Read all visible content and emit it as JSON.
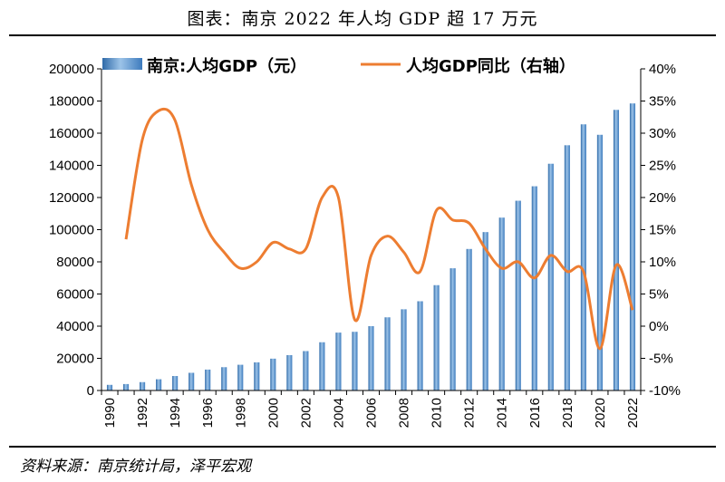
{
  "title": "图表：南京 2022 年人均 GDP 超 17 万元",
  "source": "资料来源：南京统计局，泽平宏观",
  "chart_data": {
    "type": "bar",
    "title": "图表：南京 2022 年人均 GDP 超 17 万元",
    "categories": [
      "1990",
      "1991",
      "1992",
      "1993",
      "1994",
      "1995",
      "1996",
      "1997",
      "1998",
      "1999",
      "2000",
      "2001",
      "2002",
      "2003",
      "2004",
      "2005",
      "2006",
      "2007",
      "2008",
      "2009",
      "2010",
      "2011",
      "2012",
      "2013",
      "2014",
      "2015",
      "2016",
      "2017",
      "2018",
      "2019",
      "2020",
      "2021",
      "2022"
    ],
    "x_tick_labels": [
      "1990",
      "1992",
      "1994",
      "1996",
      "1998",
      "2000",
      "2002",
      "2004",
      "2006",
      "2008",
      "2010",
      "2012",
      "2014",
      "2016",
      "2018",
      "2020",
      "2022"
    ],
    "series": [
      {
        "name": "南京:人均GDP（元）",
        "type": "bar",
        "axis": "left",
        "color": "#5b8fc7",
        "values": [
          3500,
          4000,
          5200,
          7000,
          9000,
          11000,
          13000,
          14500,
          16000,
          17500,
          19800,
          22000,
          24500,
          30000,
          36000,
          36500,
          40000,
          45500,
          50500,
          55500,
          65500,
          76000,
          88000,
          98500,
          107500,
          118000,
          127000,
          141000,
          152500,
          165500,
          159000,
          174500,
          178500
        ]
      },
      {
        "name": "人均GDP同比（右轴）",
        "type": "line",
        "axis": "right",
        "color": "#ed7d31",
        "values": [
          null,
          13.5,
          29,
          33.5,
          32,
          22,
          15,
          11.5,
          9,
          10,
          13,
          12,
          12,
          20,
          20,
          1,
          11,
          14,
          11.5,
          8.5,
          18,
          16.5,
          16,
          12,
          9,
          10,
          7.5,
          11,
          8.5,
          8.5,
          -3.5,
          9.5,
          2.5
        ]
      }
    ],
    "y_left": {
      "min": 0,
      "max": 200000,
      "step": 20000,
      "tick_labels": [
        "0",
        "20000",
        "40000",
        "60000",
        "80000",
        "100000",
        "120000",
        "140000",
        "160000",
        "180000",
        "200000"
      ]
    },
    "y_right": {
      "min": -10,
      "max": 40,
      "step": 5,
      "tick_labels": [
        "-10%",
        "-5%",
        "0%",
        "5%",
        "10%",
        "15%",
        "20%",
        "25%",
        "30%",
        "35%",
        "40%"
      ]
    },
    "legend": {
      "position": "top",
      "items": [
        "南京:人均GDP（元）",
        "人均GDP同比（右轴）"
      ]
    },
    "grid": false
  }
}
